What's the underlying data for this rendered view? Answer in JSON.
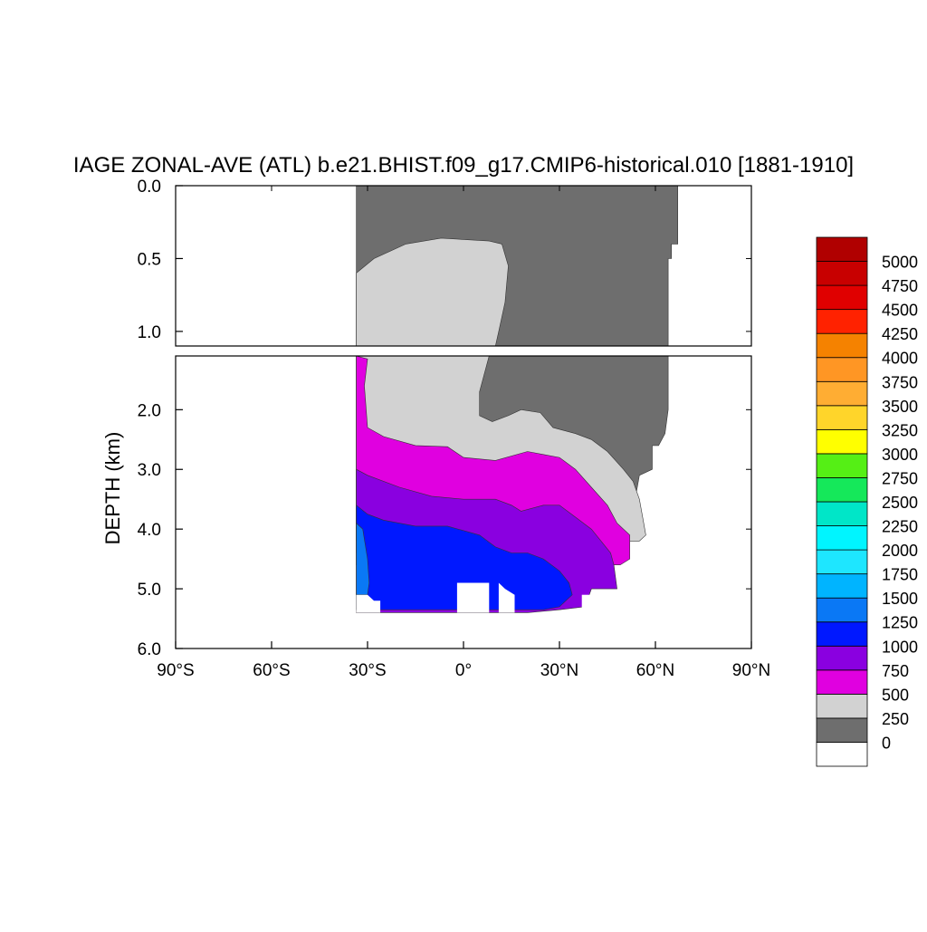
{
  "chart_data": {
    "type": "contour",
    "title": "IAGE ZONAL-AVE (ATL) b.e21.BHIST.f09_g17.CMIP6-historical.010 [1881-1910]",
    "ylabel": "DEPTH (km)",
    "xlim": [
      -90,
      90
    ],
    "ylim_upper_panel": [
      0.0,
      1.1
    ],
    "ylim_lower_panel": [
      1.1,
      6.0
    ],
    "x_ticks": [
      -90,
      -60,
      -30,
      0,
      30,
      60,
      90
    ],
    "x_tick_labels": [
      "90°S",
      "60°S",
      "30°S",
      "0°",
      "30°N",
      "60°N",
      "90°N"
    ],
    "y_ticks_upper": [
      0.0,
      0.5,
      1.0
    ],
    "y_tick_labels_upper": [
      "0.0",
      "0.5",
      "1.0"
    ],
    "y_ticks_lower": [
      2.0,
      3.0,
      4.0,
      5.0,
      6.0
    ],
    "y_tick_labels_lower": [
      "2.0",
      "3.0",
      "4.0",
      "5.0",
      "6.0"
    ],
    "colorbar": {
      "labels": [
        "0",
        "250",
        "500",
        "750",
        "1000",
        "1250",
        "1500",
        "1750",
        "2000",
        "2250",
        "2500",
        "2750",
        "3000",
        "3250",
        "3500",
        "3750",
        "4000",
        "4250",
        "4500",
        "4750",
        "5000"
      ],
      "colors": [
        "#ffffff",
        "#6e6e6e",
        "#d2d2d2",
        "#e000e0",
        "#8a00e0",
        "#0018ff",
        "#0a78f5",
        "#00b4ff",
        "#1ee6ff",
        "#00f5ff",
        "#00e6c8",
        "#15e85a",
        "#55ef15",
        "#ffff00",
        "#ffd52a",
        "#ffad33",
        "#ff9624",
        "#f58200",
        "#ff2200",
        "#e00000",
        "#c80000",
        "#b00000"
      ]
    },
    "regions": [
      {
        "level": "0-250",
        "color": "#6e6e6e",
        "upper": [
          [
            -33.5,
            0.0
          ],
          [
            67,
            0.0
          ],
          [
            67,
            0.4
          ],
          [
            65,
            0.4
          ],
          [
            65,
            0.5
          ],
          [
            64,
            0.5
          ],
          [
            64,
            1.1
          ],
          [
            -33.5,
            1.1
          ]
        ],
        "lower": [
          [
            -33.5,
            1.1
          ],
          [
            64,
            1.1
          ],
          [
            64,
            2.0
          ],
          [
            63,
            2.4
          ],
          [
            61,
            2.6
          ],
          [
            59,
            2.6
          ],
          [
            59,
            3.0
          ],
          [
            55,
            3.1
          ],
          [
            54,
            3.4
          ],
          [
            53,
            3.6
          ],
          [
            52,
            3.8
          ],
          [
            52,
            4.0
          ],
          [
            48,
            4.3
          ],
          [
            40,
            4.4
          ],
          [
            -33.5,
            4.4
          ]
        ]
      },
      {
        "level": "250-500",
        "color": "#d2d2d2",
        "upper": [
          [
            -33.5,
            0.6
          ],
          [
            -28,
            0.5
          ],
          [
            -18,
            0.4
          ],
          [
            -7,
            0.36
          ],
          [
            8,
            0.38
          ],
          [
            12,
            0.4
          ],
          [
            14,
            0.55
          ],
          [
            13,
            0.8
          ],
          [
            11,
            1.0
          ],
          [
            10,
            1.1
          ],
          [
            -33.5,
            1.1
          ]
        ],
        "lower": [
          [
            -33.5,
            1.1
          ],
          [
            8,
            1.1
          ],
          [
            5,
            1.7
          ],
          [
            5,
            2.1
          ],
          [
            9,
            2.2
          ],
          [
            14,
            2.1
          ],
          [
            18,
            2.0
          ],
          [
            24,
            2.05
          ],
          [
            28,
            2.3
          ],
          [
            35,
            2.4
          ],
          [
            40,
            2.5
          ],
          [
            45,
            2.7
          ],
          [
            50,
            3.0
          ],
          [
            53,
            3.2
          ],
          [
            55,
            3.5
          ],
          [
            56,
            3.8
          ],
          [
            57,
            4.1
          ],
          [
            55,
            4.2
          ],
          [
            50,
            4.2
          ],
          [
            45,
            4.2
          ],
          [
            -33.5,
            4.2
          ]
        ]
      },
      {
        "level": "500-750",
        "color": "#e000e0",
        "upper": [],
        "lower": [
          [
            -33.5,
            1.1
          ],
          [
            -30,
            1.15
          ],
          [
            -31,
            1.6
          ],
          [
            -30,
            2.3
          ],
          [
            -25,
            2.45
          ],
          [
            -15,
            2.6
          ],
          [
            -5,
            2.62
          ],
          [
            0,
            2.8
          ],
          [
            10,
            2.85
          ],
          [
            20,
            2.7
          ],
          [
            25,
            2.75
          ],
          [
            30,
            2.8
          ],
          [
            35,
            3.0
          ],
          [
            40,
            3.3
          ],
          [
            45,
            3.6
          ],
          [
            48,
            3.9
          ],
          [
            52,
            4.1
          ],
          [
            52,
            4.5
          ],
          [
            49,
            4.6
          ],
          [
            45,
            4.6
          ],
          [
            -33.5,
            4.6
          ]
        ]
      },
      {
        "level": "750-1000",
        "color": "#8a00e0",
        "upper": [],
        "lower": [
          [
            -33.5,
            3.0
          ],
          [
            -30,
            3.1
          ],
          [
            -20,
            3.3
          ],
          [
            -10,
            3.45
          ],
          [
            0,
            3.5
          ],
          [
            10,
            3.5
          ],
          [
            15,
            3.6
          ],
          [
            18,
            3.7
          ],
          [
            25,
            3.6
          ],
          [
            30,
            3.6
          ],
          [
            35,
            3.8
          ],
          [
            40,
            4.0
          ],
          [
            43,
            4.2
          ],
          [
            46,
            4.4
          ],
          [
            47,
            4.6
          ],
          [
            48,
            5.0
          ],
          [
            40,
            5.0
          ],
          [
            38,
            5.3
          ],
          [
            30,
            5.35
          ],
          [
            20,
            5.4
          ],
          [
            -33.5,
            5.4
          ]
        ]
      },
      {
        "level": "1000-1250",
        "color": "#0018ff",
        "upper": [],
        "lower": [
          [
            -33.5,
            3.6
          ],
          [
            -30,
            3.75
          ],
          [
            -25,
            3.85
          ],
          [
            -15,
            3.95
          ],
          [
            -5,
            3.95
          ],
          [
            5,
            4.1
          ],
          [
            10,
            4.3
          ],
          [
            15,
            4.4
          ],
          [
            20,
            4.4
          ],
          [
            25,
            4.5
          ],
          [
            30,
            4.7
          ],
          [
            33,
            4.9
          ],
          [
            34,
            5.1
          ],
          [
            30,
            5.3
          ],
          [
            25,
            5.35
          ],
          [
            15,
            5.35
          ],
          [
            10,
            5.35
          ],
          [
            0,
            5.35
          ],
          [
            -10,
            5.35
          ],
          [
            -20,
            5.35
          ],
          [
            -26,
            5.35
          ],
          [
            -30,
            5.35
          ],
          [
            -33.5,
            5.35
          ]
        ]
      },
      {
        "level": "1250-1500",
        "color": "#0a78f5",
        "upper": [],
        "lower": [
          [
            -33.5,
            3.9
          ],
          [
            -31.5,
            4.0
          ],
          [
            -30,
            4.5
          ],
          [
            -29.5,
            4.9
          ],
          [
            -30,
            5.1
          ],
          [
            -33.5,
            5.1
          ]
        ]
      }
    ],
    "no_data_blocks": [
      [
        [
          -33.5,
          5.0
        ],
        [
          -33.5,
          5.4
        ],
        [
          -26,
          5.4
        ],
        [
          -26,
          5.2
        ],
        [
          -28,
          5.2
        ],
        [
          -30,
          5.1
        ],
        [
          -33.5,
          5.1
        ]
      ],
      [
        [
          -2,
          4.9
        ],
        [
          -2,
          5.4
        ],
        [
          8,
          5.4
        ],
        [
          8,
          4.9
        ]
      ],
      [
        [
          11,
          4.9
        ],
        [
          11,
          5.4
        ],
        [
          16,
          5.4
        ],
        [
          16,
          5.1
        ],
        [
          13,
          5.0
        ]
      ],
      [
        [
          37,
          5.1
        ],
        [
          37,
          5.4
        ],
        [
          40,
          5.4
        ],
        [
          40,
          5.1
        ]
      ]
    ]
  }
}
